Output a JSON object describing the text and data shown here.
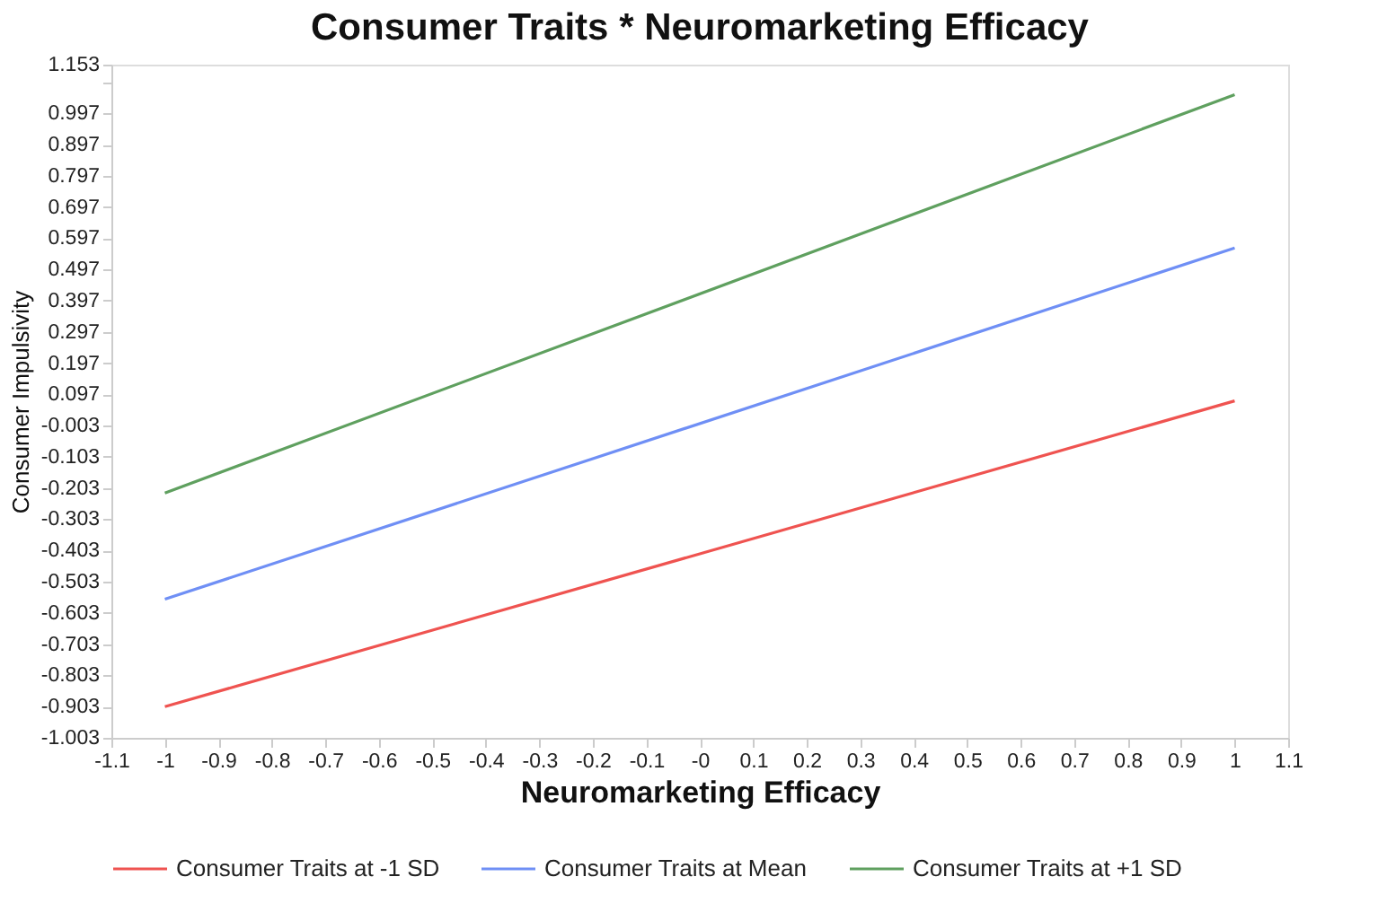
{
  "chart_data": {
    "type": "line",
    "title": "Consumer Traits * Neuromarketing Efficacy",
    "xlabel": "Neuromarketing Efficacy",
    "ylabel": "Consumer Impulsivity",
    "x": [
      -1,
      1
    ],
    "series": [
      {
        "name": "Consumer Traits at -1 SD",
        "color": "#ef5350",
        "values": [
          -0.903,
          0.076
        ]
      },
      {
        "name": "Consumer Traits at Mean",
        "color": "#6f8ff5",
        "values": [
          -0.559,
          0.566
        ]
      },
      {
        "name": "Consumer Traits at +1 SD",
        "color": "#5fa05f",
        "values": [
          -0.219,
          1.057
        ]
      }
    ],
    "xlim": [
      -1.1,
      1.1
    ],
    "xticks": [
      -1.1,
      -1,
      -0.9,
      -0.8,
      -0.7,
      -0.6,
      -0.5,
      -0.4,
      -0.3,
      -0.2,
      -0.1,
      {
        "value": 0,
        "label": "-0"
      },
      0.1,
      0.2,
      0.3,
      0.4,
      0.5,
      0.6,
      0.7,
      0.8,
      0.9,
      1,
      1.1
    ],
    "ylim": [
      -1.003,
      1.153
    ],
    "yticks": [
      -1.003,
      -0.903,
      -0.803,
      -0.703,
      -0.603,
      -0.503,
      -0.403,
      -0.303,
      -0.203,
      -0.103,
      -0.003,
      0.097,
      0.197,
      0.297,
      0.397,
      0.497,
      0.597,
      0.697,
      0.797,
      0.897,
      0.997,
      {
        "value": 1.097,
        "label": null
      },
      1.153
    ],
    "grid": false,
    "legend": "bottom",
    "marker": "none",
    "line_style": "solid"
  }
}
